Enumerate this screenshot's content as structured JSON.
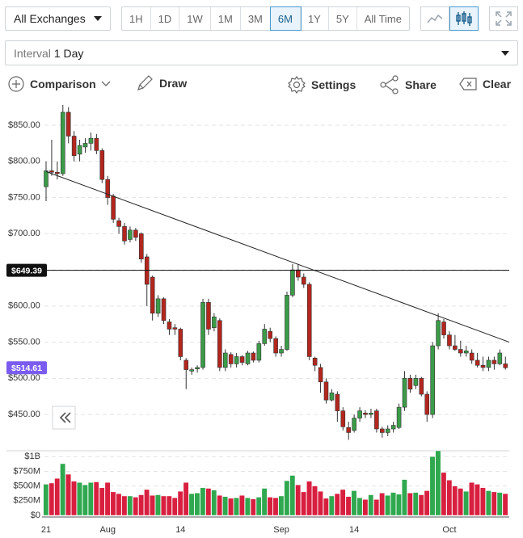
{
  "toolbar": {
    "exchange": "All Exchanges",
    "ranges": [
      "1H",
      "1D",
      "1W",
      "1M",
      "3M",
      "6M",
      "1Y",
      "5Y",
      "All Time"
    ],
    "active_range": "6M",
    "interval_label": "Interval",
    "interval": "1 Day",
    "tools": [
      "Comparison",
      "Draw",
      "Settings",
      "Share",
      "Clear"
    ]
  },
  "chart_data": {
    "type": "candlestick",
    "categories": [
      "21",
      null,
      null,
      null,
      null,
      null,
      null,
      null,
      null,
      null,
      null,
      "Aug",
      null,
      null,
      null,
      null,
      null,
      null,
      null,
      null,
      null,
      null,
      null,
      null,
      "14",
      null,
      null,
      null,
      null,
      null,
      null,
      null,
      null,
      null,
      null,
      null,
      null,
      null,
      null,
      null,
      null,
      null,
      "Sep",
      null,
      null,
      null,
      null,
      null,
      null,
      null,
      null,
      null,
      null,
      null,
      null,
      "14",
      null,
      null,
      null,
      null,
      null,
      null,
      null,
      null,
      null,
      null,
      null,
      null,
      null,
      null,
      null,
      null,
      "Oct",
      null,
      null,
      null,
      null,
      null,
      null,
      null,
      null,
      null,
      null
    ],
    "open": [
      765,
      787,
      785,
      783,
      868,
      835,
      810,
      820,
      825,
      832,
      815,
      775,
      752,
      718,
      710,
      692,
      705,
      700,
      668,
      640,
      590,
      610,
      578,
      570,
      568,
      525,
      510,
      513,
      515,
      605,
      570,
      580,
      515,
      533,
      520,
      530,
      520,
      535,
      525,
      548,
      565,
      555,
      535,
      540,
      615,
      650,
      640,
      630,
      528,
      515,
      495,
      470,
      478,
      455,
      432,
      428,
      445,
      452,
      450,
      455,
      430,
      425,
      430,
      432,
      460,
      500,
      490,
      500,
      478,
      450,
      545,
      578,
      560,
      545,
      540,
      535,
      535,
      525,
      518,
      515,
      525,
      520,
      520
    ],
    "high": [
      800,
      830,
      800,
      878,
      875,
      842,
      830,
      832,
      840,
      838,
      818,
      780,
      755,
      722,
      715,
      710,
      708,
      702,
      672,
      642,
      615,
      612,
      582,
      575,
      570,
      528,
      515,
      518,
      610,
      610,
      590,
      583,
      540,
      536,
      535,
      532,
      538,
      537,
      552,
      575,
      570,
      558,
      545,
      620,
      658,
      658,
      645,
      633,
      530,
      520,
      500,
      485,
      482,
      460,
      440,
      450,
      460,
      456,
      458,
      458,
      433,
      435,
      440,
      465,
      510,
      505,
      505,
      502,
      482,
      550,
      590,
      582,
      565,
      560,
      552,
      545,
      540,
      535,
      530,
      530,
      530,
      540,
      530
    ],
    "low": [
      745,
      780,
      775,
      780,
      825,
      800,
      800,
      812,
      815,
      810,
      770,
      740,
      715,
      700,
      685,
      688,
      690,
      660,
      600,
      580,
      585,
      575,
      560,
      560,
      525,
      485,
      505,
      508,
      512,
      560,
      565,
      510,
      510,
      515,
      515,
      518,
      518,
      522,
      522,
      545,
      550,
      530,
      530,
      538,
      612,
      635,
      625,
      525,
      510,
      480,
      465,
      468,
      440,
      428,
      415,
      425,
      440,
      445,
      445,
      425,
      418,
      420,
      425,
      430,
      455,
      480,
      485,
      475,
      440,
      445,
      540,
      555,
      540,
      538,
      530,
      530,
      520,
      515,
      510,
      510,
      512,
      518,
      512
    ],
    "close": [
      787,
      785,
      783,
      868,
      835,
      808,
      822,
      825,
      832,
      815,
      775,
      750,
      720,
      710,
      690,
      705,
      695,
      665,
      630,
      590,
      610,
      580,
      568,
      568,
      530,
      512,
      512,
      515,
      605,
      568,
      585,
      515,
      535,
      520,
      530,
      522,
      535,
      525,
      548,
      568,
      555,
      535,
      540,
      615,
      650,
      640,
      630,
      530,
      518,
      495,
      470,
      480,
      455,
      433,
      425,
      445,
      455,
      450,
      452,
      430,
      425,
      430,
      435,
      460,
      500,
      485,
      500,
      478,
      450,
      545,
      580,
      560,
      545,
      540,
      535,
      538,
      525,
      518,
      515,
      525,
      520,
      535,
      514.61
    ],
    "volume": [
      530,
      550,
      630,
      880,
      700,
      580,
      560,
      520,
      560,
      570,
      470,
      560,
      400,
      370,
      330,
      330,
      310,
      350,
      440,
      340,
      350,
      330,
      330,
      300,
      410,
      560,
      370,
      380,
      470,
      460,
      430,
      340,
      320,
      290,
      300,
      340,
      300,
      280,
      310,
      460,
      310,
      300,
      330,
      590,
      680,
      520,
      400,
      580,
      500,
      410,
      290,
      330,
      370,
      440,
      320,
      420,
      300,
      270,
      350,
      270,
      380,
      340,
      390,
      360,
      610,
      380,
      390,
      350,
      420,
      1000,
      1100,
      730,
      600,
      500,
      460,
      410,
      560,
      530,
      470,
      420,
      400,
      390,
      370
    ],
    "up_color": "#3c9b48",
    "down_color": "#b3261e",
    "volume_up_color": "#2fa84f",
    "volume_down_color": "#d81f3f",
    "ylim": [
      411,
      878
    ],
    "yticks": [
      {
        "value": 450,
        "label": "$450.00"
      },
      {
        "value": 500,
        "label": "$500.00"
      },
      {
        "value": 550,
        "label": "$550.00"
      },
      {
        "value": 600,
        "label": "$600.00"
      },
      {
        "value": 650,
        "label": "$650.00"
      },
      {
        "value": 700,
        "label": "$700.00"
      },
      {
        "value": 750,
        "label": "$750.00"
      },
      {
        "value": 800,
        "label": "$800.00"
      },
      {
        "value": 850,
        "label": "$850.00"
      }
    ],
    "volume_ylim": [
      0,
      1100
    ],
    "volume_yticks": [
      {
        "value": 0,
        "label": "$0"
      },
      {
        "value": 250,
        "label": "$250M"
      },
      {
        "value": 500,
        "label": "$500M"
      },
      {
        "value": 750,
        "label": "$750M"
      },
      {
        "value": 1000,
        "label": "$1B"
      }
    ],
    "horizontal_line": {
      "value": 649.39,
      "label": "$649.39"
    },
    "last_price": {
      "value": 514.61,
      "label": "$514.61"
    },
    "trendline": {
      "from": 786,
      "to": 552
    },
    "grid": true
  }
}
